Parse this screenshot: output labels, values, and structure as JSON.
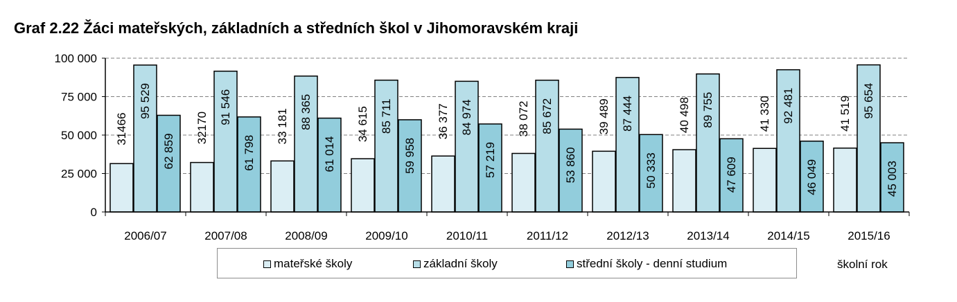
{
  "title": "Graf 2.22 Žáci mateřských, základních a středních škol v Jihomoravském kraji",
  "chart_data": {
    "type": "bar",
    "categories": [
      "2006/07",
      "2007/08",
      "2008/09",
      "2009/10",
      "2010/11",
      "2011/12",
      "2012/13",
      "2013/14",
      "2014/15",
      "2015/16"
    ],
    "series": [
      {
        "name": "mateřské školy",
        "color": "#dbeef4",
        "values": [
          31466,
          32170,
          33181,
          34615,
          36377,
          38072,
          39489,
          40498,
          41330,
          41519
        ],
        "labels": [
          "31466",
          "32170",
          "33 181",
          "34 615",
          "36 377",
          "38 072",
          "39 489",
          "40 498",
          "41 330",
          "41 519"
        ]
      },
      {
        "name": "základní školy",
        "color": "#b7dee8",
        "values": [
          95529,
          91546,
          88365,
          85711,
          84974,
          85672,
          87444,
          89755,
          92481,
          95654
        ],
        "labels": [
          "95 529",
          "91 546",
          "88 365",
          "85 711",
          "84 974",
          "85 672",
          "87 444",
          "89 755",
          "92 481",
          "95 654"
        ]
      },
      {
        "name": "střední školy - denní studium",
        "color": "#92cddc",
        "values": [
          62859,
          61798,
          61014,
          59958,
          57219,
          53860,
          50333,
          47609,
          46049,
          45003
        ],
        "labels": [
          "62 859",
          "61 798",
          "61 014",
          "59 958",
          "57 219",
          "53 860",
          "50 333",
          "47 609",
          "46 049",
          "45 003"
        ]
      }
    ],
    "ylim": [
      0,
      100000
    ],
    "yticks": [
      0,
      25000,
      50000,
      75000,
      100000
    ],
    "ytick_labels": [
      "0",
      "25 000",
      "50 000",
      "75 000",
      "100 000"
    ],
    "xlabel": "školní rok",
    "ylabel": "",
    "grid": "dashed horizontal",
    "legend_placement": "bottom"
  }
}
